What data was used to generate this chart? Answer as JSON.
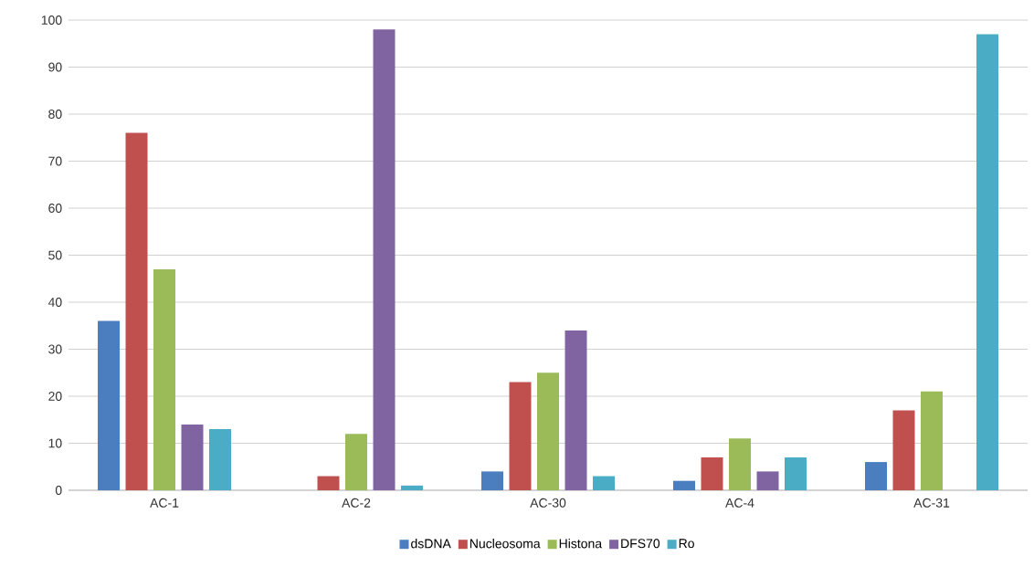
{
  "chart_data": {
    "type": "bar",
    "categories": [
      "AC-1",
      "AC-2",
      "AC-30",
      "AC-4",
      "AC-31"
    ],
    "series": [
      {
        "name": "dsDNA",
        "color": "#4a7ebf",
        "values": [
          36,
          0,
          4,
          2,
          6
        ]
      },
      {
        "name": "Nucleosoma",
        "color": "#c0504d",
        "values": [
          76,
          3,
          23,
          7,
          17
        ]
      },
      {
        "name": "Histona",
        "color": "#9bbb59",
        "values": [
          47,
          12,
          25,
          11,
          21
        ]
      },
      {
        "name": "DFS70",
        "color": "#8064a2",
        "values": [
          14,
          98,
          34,
          4,
          0
        ]
      },
      {
        "name": "Ro",
        "color": "#4bacc6",
        "values": [
          13,
          1,
          3,
          7,
          97
        ]
      }
    ],
    "ylim": [
      0,
      100
    ],
    "yticks": [
      0,
      10,
      20,
      30,
      40,
      50,
      60,
      70,
      80,
      90,
      100
    ],
    "grid": "y",
    "legend": "bottom"
  }
}
